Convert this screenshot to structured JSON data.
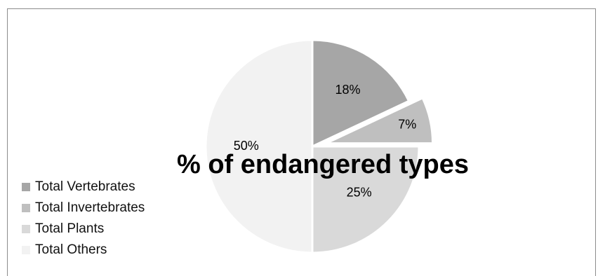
{
  "chart_data": {
    "type": "pie",
    "title": "% of endangered types",
    "categories": [
      "Total Vertebrates",
      "Total Invertebrates",
      "Total Plants",
      "Total Others"
    ],
    "values": [
      18,
      7,
      25,
      50
    ],
    "data_labels": [
      "18%",
      "7%",
      "25%",
      "50%"
    ],
    "colors": [
      "#a6a6a6",
      "#bfbfbf",
      "#d9d9d9",
      "#f2f2f2"
    ],
    "exploded": [
      false,
      true,
      false,
      false
    ],
    "legend_placement": "bottom-left"
  }
}
